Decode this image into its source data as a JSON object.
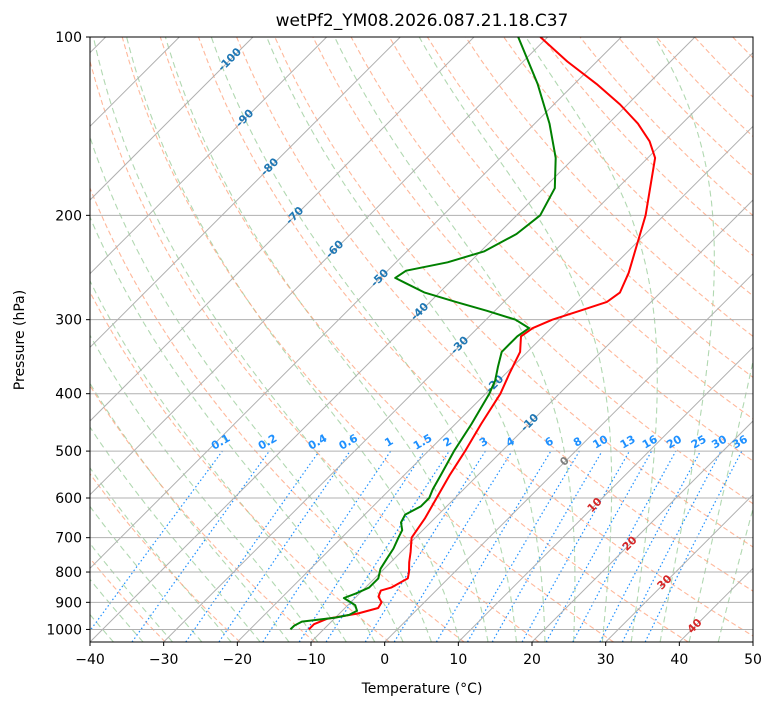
{
  "chart_data": {
    "type": "line",
    "title": "wetPf2_YM08.2026.087.21.18.C37",
    "xlabel": "Temperature (°C)",
    "ylabel": "Pressure (hPa)",
    "xlim": [
      -40,
      50
    ],
    "ylim_hPa": [
      1050,
      100
    ],
    "y_scale": "log",
    "grid": true,
    "x_ticks": [
      -40,
      -30,
      -20,
      -10,
      0,
      10,
      20,
      30,
      40,
      50
    ],
    "x_tick_labels": [
      "−40",
      "−30",
      "−20",
      "−10",
      "0",
      "10",
      "20",
      "30",
      "40",
      "50"
    ],
    "y_ticks": [
      1000,
      900,
      800,
      700,
      600,
      500,
      400,
      300,
      200,
      100
    ],
    "y_tick_labels": [
      "1000",
      "900",
      "800",
      "700",
      "600",
      "500",
      "400",
      "300",
      "200",
      "100"
    ],
    "isotherm_labels": [
      "-100",
      "-90",
      "-80",
      "-70",
      "-60",
      "-50",
      "-40",
      "-30",
      "-20",
      "-10",
      "0",
      "10",
      "20",
      "30",
      "40"
    ],
    "mixing_ratio_labels": [
      "0.1",
      "0.2",
      "0.4",
      "0.6",
      "1",
      "1.5",
      "2",
      "3",
      "4",
      "6",
      "8",
      "10",
      "13",
      "16",
      "20",
      "25",
      "30",
      "36"
    ],
    "colors": {
      "temperature": "#ff0000",
      "dewpoint": "#008000",
      "isotherm_label": "#1f77b4",
      "warm_isotherm_label": "#d62728",
      "zero_isotherm_label": "#808080",
      "mixing_ratio": "#1e90ff",
      "dry_adiabat": "#ffa07a",
      "moist_adiabat": "#90c890",
      "grid": "#b0b0b0"
    },
    "series": [
      {
        "name": "Temperature",
        "points": [
          [
            1000,
            -12.0
          ],
          [
            980,
            -12.0
          ],
          [
            960,
            -11.0
          ],
          [
            940,
            -7.5
          ],
          [
            920,
            -5.5
          ],
          [
            900,
            -5.8
          ],
          [
            880,
            -7.0
          ],
          [
            860,
            -7.5
          ],
          [
            850,
            -6.5
          ],
          [
            820,
            -5.5
          ],
          [
            800,
            -6.2
          ],
          [
            770,
            -7.5
          ],
          [
            740,
            -8.7
          ],
          [
            700,
            -10.5
          ],
          [
            650,
            -11.3
          ],
          [
            600,
            -12.5
          ],
          [
            550,
            -13.8
          ],
          [
            500,
            -15.0
          ],
          [
            450,
            -16.5
          ],
          [
            400,
            -18.0
          ],
          [
            370,
            -19.5
          ],
          [
            340,
            -21.0
          ],
          [
            320,
            -23.0
          ],
          [
            310,
            -22.5
          ],
          [
            300,
            -21.0
          ],
          [
            290,
            -18.5
          ],
          [
            280,
            -16.0
          ],
          [
            270,
            -15.5
          ],
          [
            250,
            -17.0
          ],
          [
            200,
            -22.5
          ],
          [
            160,
            -29.0
          ],
          [
            150,
            -32.0
          ],
          [
            140,
            -36.0
          ],
          [
            130,
            -41.0
          ],
          [
            120,
            -47.0
          ],
          [
            110,
            -54.0
          ],
          [
            100,
            -61.0
          ]
        ]
      },
      {
        "name": "Dewpoint",
        "points": [
          [
            1000,
            -14.5
          ],
          [
            985,
            -14.5
          ],
          [
            970,
            -14.0
          ],
          [
            955,
            -10.0
          ],
          [
            945,
            -8.5
          ],
          [
            930,
            -8.0
          ],
          [
            910,
            -9.0
          ],
          [
            895,
            -10.5
          ],
          [
            885,
            -11.5
          ],
          [
            870,
            -10.5
          ],
          [
            850,
            -9.5
          ],
          [
            820,
            -9.5
          ],
          [
            790,
            -10.5
          ],
          [
            760,
            -11.0
          ],
          [
            730,
            -11.5
          ],
          [
            700,
            -12.3
          ],
          [
            680,
            -12.8
          ],
          [
            660,
            -14.0
          ],
          [
            640,
            -14.5
          ],
          [
            620,
            -13.5
          ],
          [
            600,
            -13.5
          ],
          [
            580,
            -14.2
          ],
          [
            550,
            -15.0
          ],
          [
            500,
            -16.5
          ],
          [
            450,
            -17.8
          ],
          [
            400,
            -19.5
          ],
          [
            380,
            -20.5
          ],
          [
            360,
            -22.0
          ],
          [
            340,
            -23.5
          ],
          [
            320,
            -23.5
          ],
          [
            310,
            -23.0
          ],
          [
            300,
            -26.0
          ],
          [
            290,
            -31.0
          ],
          [
            280,
            -36.5
          ],
          [
            270,
            -42.0
          ],
          [
            260,
            -46.0
          ],
          [
            255,
            -48.0
          ],
          [
            248,
            -47.5
          ],
          [
            240,
            -43.0
          ],
          [
            230,
            -39.5
          ],
          [
            215,
            -37.5
          ],
          [
            200,
            -36.8
          ],
          [
            180,
            -38.5
          ],
          [
            160,
            -42.5
          ],
          [
            140,
            -48.0
          ],
          [
            120,
            -55.0
          ],
          [
            100,
            -64.0
          ]
        ]
      }
    ]
  }
}
